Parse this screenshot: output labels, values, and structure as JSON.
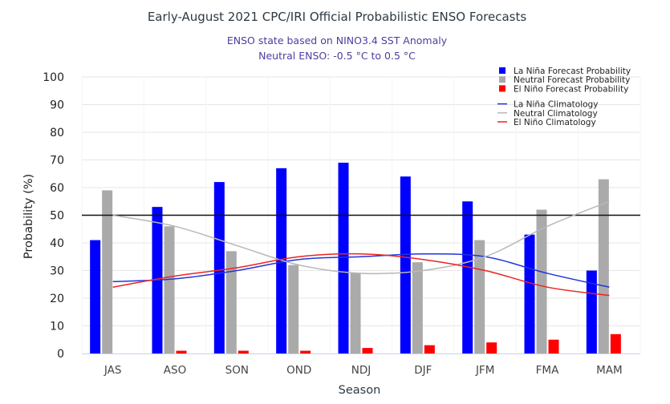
{
  "chart_data": {
    "type": "bar",
    "title": "Early-August 2021 CPC/IRI Official Probabilistic ENSO Forecasts",
    "subtitle": [
      "ENSO state based on NINO3.4 SST Anomaly",
      "Neutral ENSO: -0.5 °C to 0.5 °C"
    ],
    "xlabel": "Season",
    "ylabel": "Probability (%)",
    "ylim": [
      0,
      100
    ],
    "yticks": [
      0,
      10,
      20,
      30,
      40,
      50,
      60,
      70,
      80,
      90,
      100
    ],
    "reference_line": 50,
    "grid": true,
    "legend_position": "top-right",
    "categories": [
      "JAS",
      "ASO",
      "SON",
      "OND",
      "NDJ",
      "DJF",
      "JFM",
      "FMA",
      "MAM"
    ],
    "series": [
      {
        "name": "La Niña Forecast Probability",
        "kind": "bar",
        "color": "#0000ff",
        "values": [
          41,
          53,
          62,
          67,
          69,
          64,
          55,
          43,
          30
        ]
      },
      {
        "name": "Neutral Forecast Probability",
        "kind": "bar",
        "color": "#aaaaaa",
        "values": [
          59,
          46,
          37,
          32,
          29,
          33,
          41,
          52,
          63
        ]
      },
      {
        "name": "El Niño Forecast Probability",
        "kind": "bar",
        "color": "#ff0000",
        "values": [
          0,
          1,
          1,
          1,
          2,
          3,
          4,
          5,
          7
        ]
      },
      {
        "name": "La Niña Climatology",
        "kind": "line",
        "color": "#2233dd",
        "values": [
          26,
          27,
          30,
          34,
          35,
          36,
          35,
          29,
          24
        ]
      },
      {
        "name": "Neutral Climatology",
        "kind": "line",
        "color": "#b8b8b8",
        "values": [
          50,
          46,
          39,
          32,
          29,
          30,
          35,
          46,
          55
        ]
      },
      {
        "name": "El Niño Climatology",
        "kind": "line",
        "color": "#ee2222",
        "values": [
          24,
          28,
          31,
          35,
          36,
          34,
          30,
          24,
          21
        ]
      }
    ]
  }
}
